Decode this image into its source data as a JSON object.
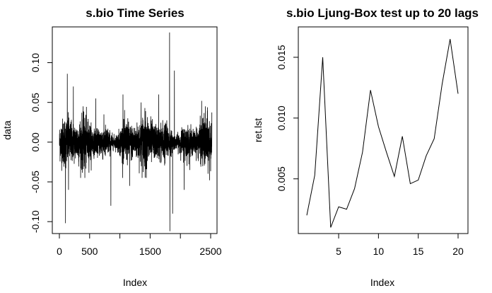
{
  "chart_data": [
    {
      "type": "line",
      "title": "s.bio Time Series",
      "xlabel": "Index",
      "ylabel": "data",
      "xlim": [
        0,
        2520
      ],
      "ylim": [
        -0.115,
        0.145
      ],
      "xticks": [
        0,
        500,
        1000,
        1500,
        2000,
        2500
      ],
      "xtick_labels": [
        "0",
        "500",
        "",
        "1500",
        "",
        "2500"
      ],
      "yticks": [
        -0.1,
        -0.05,
        0.0,
        0.05,
        0.1
      ],
      "ytick_labels": [
        "-0.10",
        "-0.05",
        "0.00",
        "0.05",
        "0.10"
      ],
      "n_points": 2520,
      "typical_range": [
        -0.03,
        0.03
      ],
      "spikes": [
        {
          "x": 100,
          "y": -0.102
        },
        {
          "x": 130,
          "y": 0.086
        },
        {
          "x": 150,
          "y": -0.06
        },
        {
          "x": 230,
          "y": 0.07
        },
        {
          "x": 420,
          "y": -0.045
        },
        {
          "x": 600,
          "y": 0.055
        },
        {
          "x": 850,
          "y": -0.08
        },
        {
          "x": 1050,
          "y": 0.06
        },
        {
          "x": 1160,
          "y": -0.055
        },
        {
          "x": 1350,
          "y": 0.05
        },
        {
          "x": 1640,
          "y": 0.06
        },
        {
          "x": 1820,
          "y": 0.138
        },
        {
          "x": 1825,
          "y": -0.112
        },
        {
          "x": 1870,
          "y": -0.09
        },
        {
          "x": 1900,
          "y": 0.09
        },
        {
          "x": 2060,
          "y": -0.06
        },
        {
          "x": 2350,
          "y": 0.052
        },
        {
          "x": 2480,
          "y": -0.048
        }
      ],
      "grid": false,
      "color": "#000000"
    },
    {
      "type": "line",
      "title": "s.bio Ljung-Box test up to 20 lags",
      "xlabel": "Index",
      "ylabel": "ret.lst",
      "xlim": [
        1,
        20
      ],
      "ylim": [
        0.0005,
        0.0175
      ],
      "xticks": [
        5,
        10,
        15,
        20
      ],
      "yticks": [
        0.005,
        0.01,
        0.015
      ],
      "ytick_labels": [
        "0.005",
        "0.010",
        "0.015"
      ],
      "x": [
        1,
        2,
        3,
        4,
        5,
        6,
        7,
        8,
        9,
        10,
        11,
        12,
        13,
        14,
        15,
        16,
        17,
        18,
        19,
        20
      ],
      "y": [
        0.002,
        0.0053,
        0.015,
        0.001,
        0.0027,
        0.0025,
        0.0042,
        0.0072,
        0.0123,
        0.0093,
        0.0072,
        0.0052,
        0.0085,
        0.0046,
        0.0049,
        0.0069,
        0.0083,
        0.0128,
        0.0165,
        0.012
      ],
      "grid": false,
      "color": "#000000"
    }
  ]
}
